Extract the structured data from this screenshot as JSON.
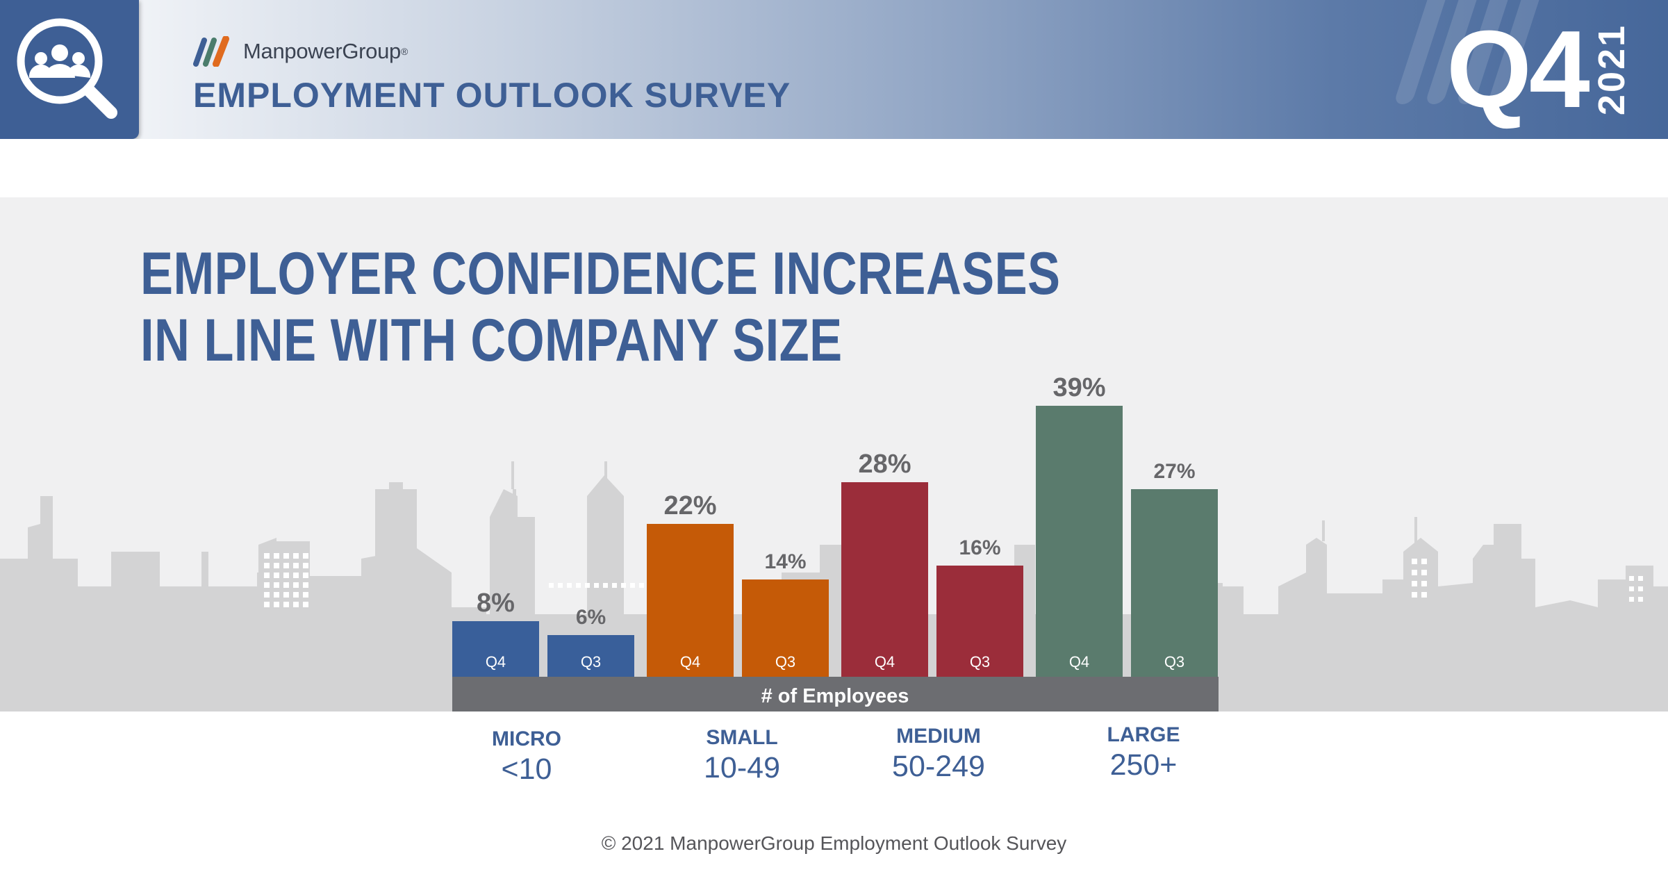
{
  "header": {
    "brand": "ManpowerGroup",
    "brand_mark": "®",
    "survey_title": "EMPLOYMENT OUTLOOK SURVEY",
    "quarter": "Q4",
    "year": "2021",
    "icon": "search-people-icon",
    "colors": {
      "brand_blue": "#3e5f95",
      "logo_blue": "#3e5f95",
      "logo_orange": "#e06b1f",
      "logo_green": "#4b7d6c"
    }
  },
  "headline": {
    "line1": "EMPLOYER CONFIDENCE INCREASES",
    "line2": "IN LINE WITH COMPANY SIZE"
  },
  "chart_data": {
    "type": "bar",
    "title": "EMPLOYER CONFIDENCE INCREASES IN LINE WITH COMPANY SIZE",
    "xlabel": "# of Employees",
    "ylabel": "",
    "categories": [
      "MICRO",
      "SMALL",
      "MEDIUM",
      "LARGE"
    ],
    "category_ranges": [
      "<10",
      "10-49",
      "50-249",
      "250+"
    ],
    "series": [
      {
        "name": "Q4",
        "values": [
          8,
          22,
          28,
          39
        ],
        "labels": [
          "8%",
          "22%",
          "28%",
          "39%"
        ]
      },
      {
        "name": "Q3",
        "values": [
          6,
          14,
          16,
          27
        ],
        "labels": [
          "6%",
          "14%",
          "16%",
          "27%"
        ]
      }
    ],
    "colors": [
      "#395f9a",
      "#c55a07",
      "#9b2d3a",
      "#5a7b6d"
    ],
    "ylim": [
      0,
      39
    ],
    "grid": false,
    "legend": "none"
  },
  "footer": "© 2021 ManpowerGroup Employment Outlook Survey"
}
